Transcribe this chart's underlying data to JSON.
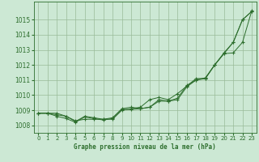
{
  "title": "Graphe pression niveau de la mer (hPa)",
  "background_color": "#cce8d4",
  "plot_bg_color": "#cce8d4",
  "grid_color": "#99bb99",
  "line_color": "#2d6e2d",
  "ylim": [
    1007.5,
    1016.2
  ],
  "xlim": [
    -0.5,
    23.5
  ],
  "yticks": [
    1008,
    1009,
    1010,
    1011,
    1012,
    1013,
    1014,
    1015
  ],
  "xticks": [
    0,
    1,
    2,
    3,
    4,
    5,
    6,
    7,
    8,
    9,
    10,
    11,
    12,
    13,
    14,
    15,
    16,
    17,
    18,
    19,
    20,
    21,
    22,
    23
  ],
  "series1": [
    1008.8,
    1008.8,
    1008.7,
    1008.6,
    1008.3,
    1008.4,
    1008.4,
    1008.4,
    1008.4,
    1009.0,
    1009.1,
    1009.2,
    1009.7,
    1009.85,
    1009.7,
    1010.1,
    1010.6,
    1011.1,
    1011.1,
    1012.0,
    1012.75,
    1013.5,
    1015.0,
    1015.55
  ],
  "series2": [
    1008.8,
    1008.8,
    1008.8,
    1008.6,
    1008.25,
    1008.6,
    1008.5,
    1008.4,
    1008.5,
    1009.1,
    1009.2,
    1009.1,
    1009.2,
    1009.6,
    1009.6,
    1009.8,
    1010.65,
    1011.0,
    1011.15,
    1012.0,
    1012.8,
    1013.5,
    1015.0,
    1015.55
  ],
  "series3": [
    1008.8,
    1008.8,
    1008.6,
    1008.45,
    1008.2,
    1008.55,
    1008.45,
    1008.35,
    1008.45,
    1009.05,
    1009.05,
    1009.1,
    1009.2,
    1009.7,
    1009.6,
    1009.7,
    1010.55,
    1011.0,
    1011.1,
    1012.0,
    1012.75,
    1012.8,
    1013.5,
    1015.6
  ]
}
